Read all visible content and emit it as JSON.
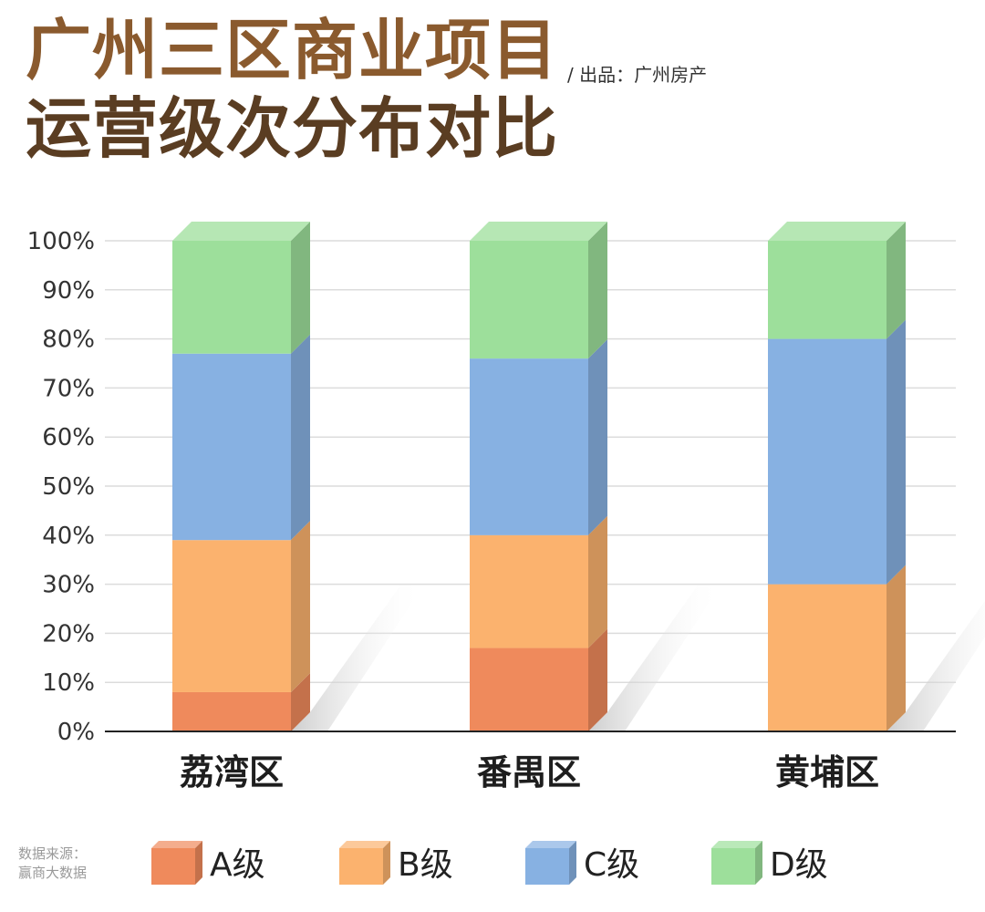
{
  "header": {
    "title_line1": "广州三区商业项目",
    "title_line2": "运营级次分布对比",
    "credit": "/ 出品：广州房产"
  },
  "footer": {
    "source_line1": "数据来源：",
    "source_line2": "赢商大数据"
  },
  "colors": {
    "A级": "#ef8a5c",
    "B级": "#fbb26e",
    "C级": "#87b1e2",
    "D级": "#9ddf9b"
  },
  "chart_data": {
    "type": "bar",
    "stacked": true,
    "three_d": true,
    "categories": [
      "荔湾区",
      "番禺区",
      "黄埔区"
    ],
    "series": [
      {
        "name": "A级",
        "values": [
          8,
          17,
          0
        ]
      },
      {
        "name": "B级",
        "values": [
          31,
          23,
          30
        ]
      },
      {
        "name": "C级",
        "values": [
          38,
          36,
          50
        ]
      },
      {
        "name": "D级",
        "values": [
          23,
          24,
          20
        ]
      }
    ],
    "y_ticks": [
      "0%",
      "10%",
      "20%",
      "30%",
      "40%",
      "50%",
      "60%",
      "70%",
      "80%",
      "90%",
      "100%"
    ],
    "ylim": [
      0,
      100
    ],
    "grid": true,
    "legend_position": "bottom"
  }
}
